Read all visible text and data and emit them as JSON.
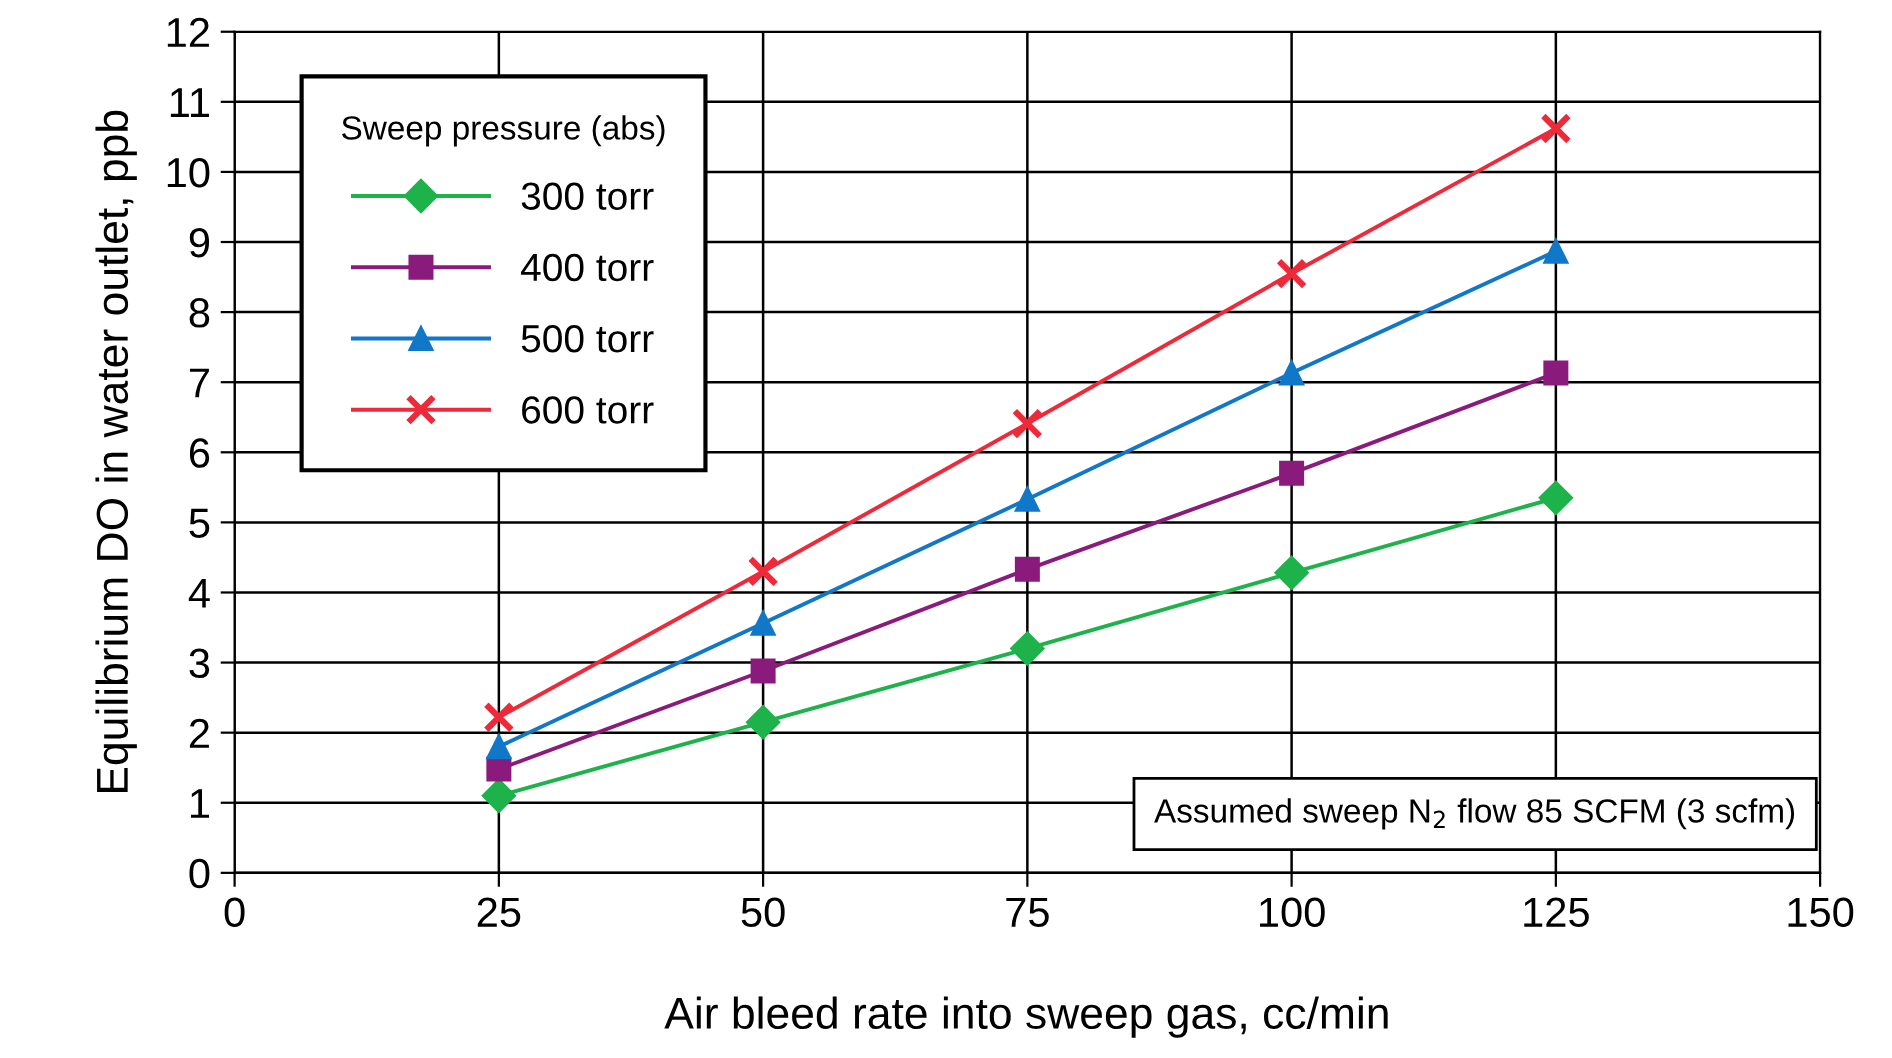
{
  "chart_data": {
    "type": "line",
    "xlabel": "Air bleed rate into sweep gas, cc/min",
    "ylabel": "Equilibrium DO in water outlet, ppb",
    "legend_title": "Sweep pressure (abs)",
    "x": [
      25,
      50,
      75,
      100,
      125
    ],
    "series": [
      {
        "name": "300 torr",
        "color": "#1db34a",
        "marker": "diamond",
        "values": [
          1.1,
          2.15,
          3.2,
          4.28,
          5.35
        ]
      },
      {
        "name": "400 torr",
        "color": "#8b1a7d",
        "marker": "square",
        "values": [
          1.48,
          2.88,
          4.33,
          5.7,
          7.13
        ]
      },
      {
        "name": "500 torr",
        "color": "#1177c8",
        "marker": "triangle",
        "values": [
          1.8,
          3.56,
          5.33,
          7.13,
          8.87
        ]
      },
      {
        "name": "600 torr",
        "color": "#ee2a3a",
        "marker": "cross",
        "values": [
          2.22,
          4.3,
          6.41,
          8.55,
          10.62
        ]
      }
    ],
    "xlim": [
      0,
      150
    ],
    "xticks": [
      0,
      25,
      50,
      75,
      100,
      125,
      150
    ],
    "ylim": [
      0,
      12
    ],
    "yticks": [
      0,
      1,
      2,
      3,
      4,
      5,
      6,
      7,
      8,
      9,
      10,
      11,
      12
    ],
    "grid": true,
    "legend": "top left",
    "line_style": "solid",
    "annotations": [
      "Assumed sweep N$_{2}$ flow 85 SCFM (3 scfm)"
    ]
  }
}
